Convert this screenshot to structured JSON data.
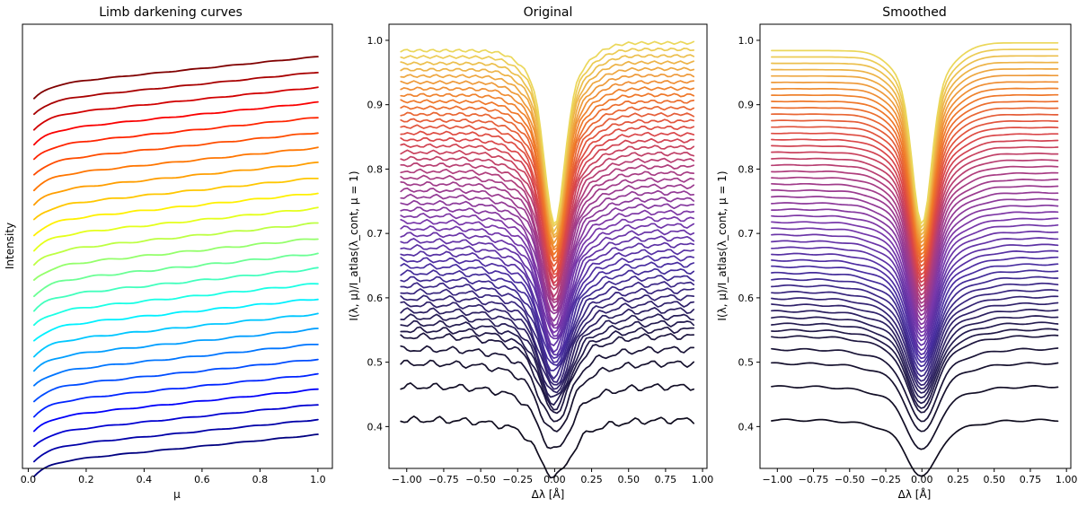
{
  "chart_data": [
    {
      "type": "line",
      "title": "Limb darkening curves",
      "xlabel": "μ",
      "ylabel": "Intensity",
      "xlim": [
        -0.02,
        1.05
      ],
      "ylim": [
        0.0,
        1.0
      ],
      "xticks": [
        0.0,
        0.2,
        0.4,
        0.6,
        0.8,
        1.0
      ],
      "xtick_labels": [
        "0.0",
        "0.2",
        "0.4",
        "0.6",
        "0.8",
        "1.0"
      ],
      "y_ticks_shown": false,
      "series_count": 26,
      "colormap": "jet",
      "mu_start": 0.02,
      "mu_end": 1.0,
      "series_end_values": [
        0.927,
        0.892,
        0.858,
        0.824,
        0.79,
        0.756,
        0.722,
        0.688,
        0.654,
        0.62,
        0.586,
        0.552,
        0.518,
        0.484,
        0.45,
        0.416,
        0.382,
        0.348,
        0.314,
        0.28,
        0.246,
        0.212,
        0.178,
        0.144,
        0.11,
        0.076
      ],
      "series_start_values": [
        0.816,
        0.781,
        0.747,
        0.713,
        0.679,
        0.645,
        0.611,
        0.577,
        0.543,
        0.509,
        0.475,
        0.441,
        0.407,
        0.373,
        0.339,
        0.305,
        0.271,
        0.237,
        0.203,
        0.169,
        0.135,
        0.101,
        0.067,
        0.033,
        0.0,
        -0.034
      ]
    },
    {
      "type": "line",
      "title": "Original",
      "xlabel": "Δλ [Å]",
      "ylabel": "I(λ, μ)/I_atlas(λ_cont, μ = 1)",
      "xlim": [
        -1.12,
        1.03
      ],
      "ylim": [
        0.335,
        1.025
      ],
      "xticks": [
        -1.0,
        -0.75,
        -0.5,
        -0.25,
        0.0,
        0.25,
        0.5,
        0.75,
        1.0
      ],
      "xtick_labels": [
        "−1.00",
        "−0.75",
        "−0.50",
        "−0.25",
        "0.00",
        "0.25",
        "0.50",
        "0.75",
        "1.00"
      ],
      "yticks": [
        0.4,
        0.5,
        0.6,
        0.7,
        0.8,
        0.9,
        1.0
      ],
      "ytick_labels": [
        "0.4",
        "0.5",
        "0.6",
        "0.7",
        "0.8",
        "0.9",
        "1.0"
      ],
      "colormap": "inferno-like",
      "x_range": [
        -1.04,
        0.94
      ],
      "continuum_levels": [
        0.41,
        0.462,
        0.498,
        0.52,
        0.99,
        0.98,
        0.97,
        0.96,
        0.95,
        0.94,
        0.93,
        0.92,
        0.91,
        0.9,
        0.89,
        0.88,
        0.87,
        0.86,
        0.85,
        0.84,
        0.83,
        0.82,
        0.81,
        0.8,
        0.79,
        0.78,
        0.77,
        0.76,
        0.75,
        0.74,
        0.73,
        0.72,
        0.71,
        0.7,
        0.69,
        0.68,
        0.67,
        0.66,
        0.65,
        0.64,
        0.63,
        0.62,
        0.61,
        0.6,
        0.59,
        0.58,
        0.57,
        0.56,
        0.55,
        0.54
      ],
      "line_core_depth_fraction": 0.265,
      "line_center": 0.0
    },
    {
      "type": "line",
      "title": "Smoothed",
      "xlabel": "Δλ [Å]",
      "ylabel": "I(λ, μ)/I_atlas(λ_cont, μ = 1)",
      "xlim": [
        -1.12,
        1.03
      ],
      "ylim": [
        0.335,
        1.025
      ],
      "xticks": [
        -1.0,
        -0.75,
        -0.5,
        -0.25,
        0.0,
        0.25,
        0.5,
        0.75,
        1.0
      ],
      "xtick_labels": [
        "−1.00",
        "−0.75",
        "−0.50",
        "−0.25",
        "0.00",
        "0.25",
        "0.50",
        "0.75",
        "1.00"
      ],
      "yticks": [
        0.4,
        0.5,
        0.6,
        0.7,
        0.8,
        0.9,
        1.0
      ],
      "ytick_labels": [
        "0.4",
        "0.5",
        "0.6",
        "0.7",
        "0.8",
        "0.9",
        "1.0"
      ],
      "colormap": "inferno-like",
      "x_range": [
        -1.04,
        0.94
      ],
      "continuum_levels": [
        0.41,
        0.462,
        0.498,
        0.52,
        0.99,
        0.98,
        0.97,
        0.96,
        0.95,
        0.94,
        0.93,
        0.92,
        0.91,
        0.9,
        0.89,
        0.88,
        0.87,
        0.86,
        0.85,
        0.84,
        0.83,
        0.82,
        0.81,
        0.8,
        0.79,
        0.78,
        0.77,
        0.76,
        0.75,
        0.74,
        0.73,
        0.72,
        0.71,
        0.7,
        0.69,
        0.68,
        0.67,
        0.66,
        0.65,
        0.64,
        0.63,
        0.62,
        0.61,
        0.6,
        0.59,
        0.58,
        0.57,
        0.56,
        0.55,
        0.54
      ],
      "line_core_depth_fraction": 0.265,
      "line_center": 0.0
    }
  ]
}
